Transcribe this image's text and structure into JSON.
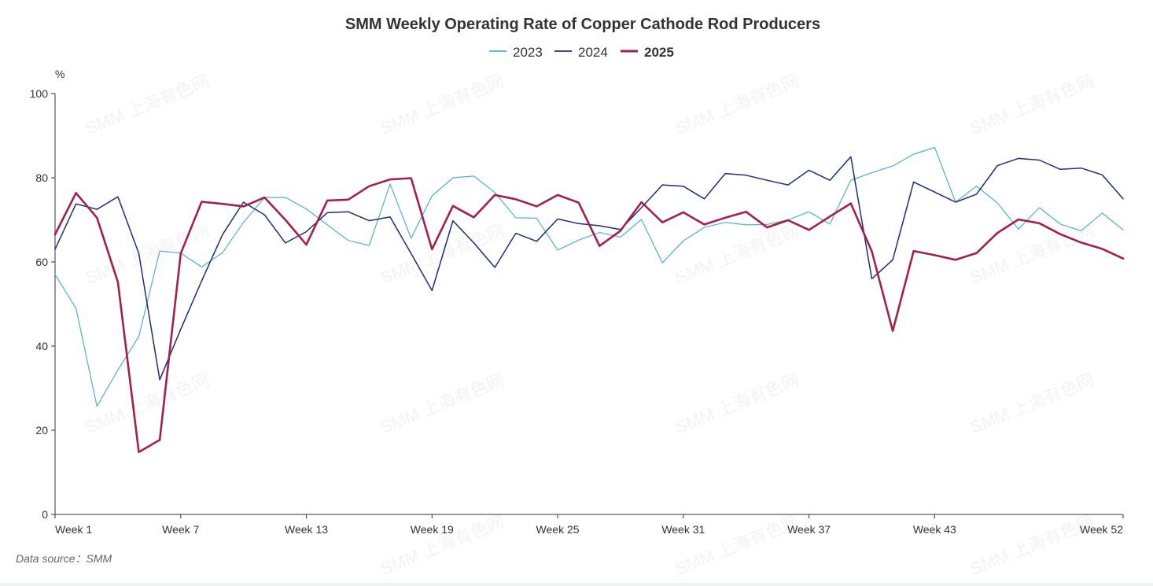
{
  "chart_data": {
    "type": "line",
    "title": "SMM Weekly Operating Rate of Copper Cathode Rod Producers",
    "ylabel": "%",
    "xlabel": "",
    "ylim": [
      0,
      100
    ],
    "yticks": [
      0,
      20,
      40,
      60,
      80,
      100
    ],
    "xlim": [
      1,
      52
    ],
    "x_tick_labels": [
      {
        "week": 1,
        "label": "Week 1"
      },
      {
        "week": 7,
        "label": "Week 7"
      },
      {
        "week": 13,
        "label": "Week 13"
      },
      {
        "week": 19,
        "label": "Week 19"
      },
      {
        "week": 25,
        "label": "Week 25"
      },
      {
        "week": 31,
        "label": "Week 31"
      },
      {
        "week": 37,
        "label": "Week 37"
      },
      {
        "week": 43,
        "label": "Week 43"
      },
      {
        "week": 52,
        "label": "Week 52"
      }
    ],
    "legend_position": "top-center",
    "grid": false,
    "series": [
      {
        "name": "2023",
        "color": "#4bb3c7",
        "x": [
          1,
          2,
          3,
          4,
          5,
          6,
          7,
          8,
          9,
          10,
          11,
          12,
          13,
          14,
          15,
          16,
          17,
          18,
          19,
          20,
          21,
          22,
          23,
          24,
          25,
          26,
          27,
          28,
          29,
          30,
          31,
          32,
          33,
          34,
          35,
          36,
          37,
          38,
          39,
          40,
          41,
          42,
          43,
          44,
          45,
          46,
          47,
          48,
          49,
          50,
          51,
          52
        ],
        "values": [
          57,
          49,
          25.7,
          34.3,
          42.3,
          62.6,
          62.1,
          58.8,
          62.2,
          69.4,
          75.3,
          75.3,
          72.6,
          68.8,
          65.1,
          63.9,
          78.5,
          65.6,
          75.7,
          80,
          80.4,
          76.5,
          70.5,
          70.4,
          62.8,
          65.2,
          67,
          65.9,
          70.1,
          59.8,
          65,
          68.2,
          69.4,
          68.8,
          68.9,
          70,
          71.9,
          69,
          79.4,
          81.2,
          82.8,
          85.6,
          87.2,
          74.2,
          78,
          74,
          67.8,
          72.9,
          69,
          67.4,
          71.6,
          67.6
        ]
      },
      {
        "name": "2024",
        "color": "#1b2d7e",
        "x": [
          1,
          2,
          3,
          4,
          5,
          6,
          7,
          8,
          9,
          10,
          11,
          12,
          13,
          14,
          15,
          16,
          17,
          18,
          19,
          20,
          21,
          22,
          23,
          24,
          25,
          26,
          27,
          28,
          29,
          30,
          31,
          32,
          33,
          34,
          35,
          36,
          37,
          38,
          39,
          40,
          41,
          42,
          43,
          44,
          45,
          46,
          47,
          48,
          49,
          50,
          51,
          52
        ],
        "values": [
          63,
          73.8,
          72.5,
          75.5,
          62,
          32,
          44,
          55.5,
          66.5,
          74.2,
          71.2,
          64.5,
          67.2,
          71.7,
          71.9,
          69.8,
          70.7,
          62,
          53.2,
          69.8,
          64.5,
          58.7,
          66.8,
          64.9,
          70.2,
          69.1,
          68.6,
          67.7,
          72.9,
          78.3,
          78,
          75,
          81,
          80.6,
          79.4,
          78.3,
          81.8,
          79.4,
          85,
          56,
          60.5,
          79,
          76.6,
          74.2,
          76.1,
          82.9,
          84.6,
          84.2,
          82,
          82.3,
          80.7,
          75
        ]
      },
      {
        "name": "2025",
        "color": "#a51f4e",
        "x": [
          1,
          2,
          3,
          4,
          5,
          6,
          7,
          8,
          9,
          10,
          11,
          12,
          13,
          14,
          15,
          16,
          17,
          18,
          19,
          20,
          21,
          22,
          23,
          24,
          25,
          26,
          27,
          28,
          29,
          30,
          31,
          32,
          33,
          34,
          35,
          36,
          37,
          38,
          39,
          40,
          41,
          42,
          43,
          44,
          45,
          46,
          47,
          48,
          49,
          50,
          51,
          52
        ],
        "values": [
          66.5,
          76.4,
          70.5,
          55.2,
          14.8,
          17.7,
          62,
          74.3,
          73.8,
          73.2,
          75.3,
          70,
          64.1,
          74.6,
          74.8,
          78,
          79.6,
          79.9,
          63,
          73.3,
          70.6,
          75.9,
          74.9,
          73.2,
          75.9,
          74.1,
          63.8,
          67.4,
          74.2,
          69.4,
          71.8,
          68.9,
          70.5,
          71.9,
          68.2,
          69.9,
          67.6,
          70.8,
          73.9,
          62.5,
          43.6,
          62.6,
          61.6,
          60.5,
          62.1,
          66.9,
          70.1,
          69.2,
          66.6,
          64.6,
          63.1,
          60.8
        ]
      }
    ],
    "footer": "Data source：SMM",
    "watermark": "SMM 上海有色网"
  }
}
